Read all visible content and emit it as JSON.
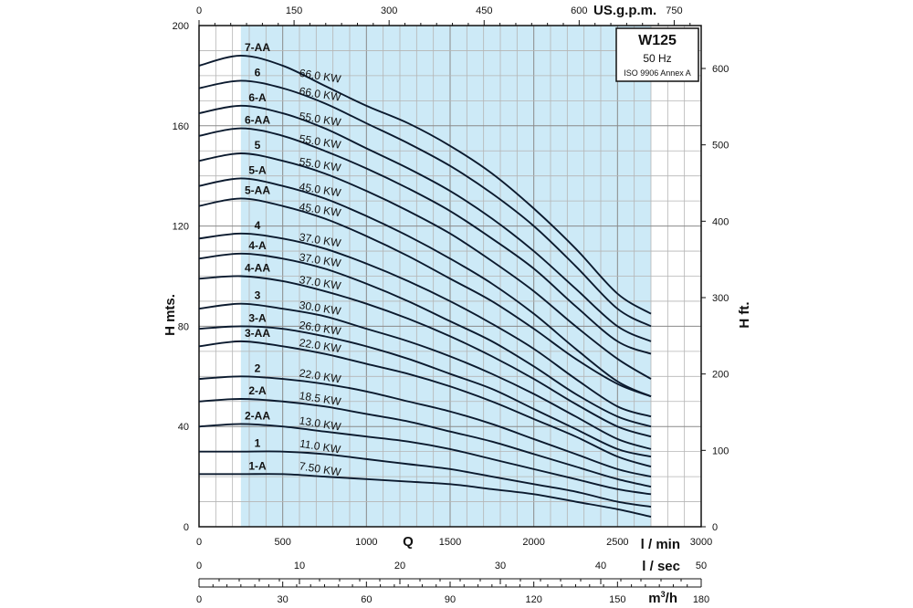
{
  "chart_data": {
    "type": "line",
    "title_box": {
      "model": "W125",
      "frequency": "50 Hz",
      "standard": "ISO 9906 Annex A"
    },
    "x_axis": {
      "label": "Q",
      "unit_label": "l / min",
      "range": [
        0,
        3000
      ],
      "ticks": [
        0,
        500,
        1000,
        1500,
        2000,
        2500,
        3000
      ]
    },
    "y_axis": {
      "label": "H mts.",
      "range": [
        0,
        200
      ],
      "ticks": [
        0,
        40,
        80,
        120,
        160,
        200
      ]
    },
    "y_axis_right": {
      "label": "H ft.",
      "ticks": [
        0,
        100,
        200,
        300,
        400,
        500,
        600
      ]
    },
    "x_axis_top": {
      "label": "US.g.p.m.",
      "ticks": [
        0,
        150,
        300,
        450,
        600,
        750
      ]
    },
    "x_axis_lsec": {
      "label": "l / sec",
      "ticks": [
        0,
        10,
        20,
        30,
        40,
        50
      ]
    },
    "x_axis_m3h": {
      "label": "m3/h",
      "ticks": [
        0,
        30,
        60,
        90,
        120,
        150,
        180
      ]
    },
    "operating_range": [
      250,
      2700
    ],
    "grid": true,
    "series": [
      {
        "name": "7-AA",
        "power": "66.0 KW",
        "x": [
          0,
          250,
          500,
          750,
          1000,
          1250,
          1500,
          1750,
          2000,
          2250,
          2500,
          2700
        ],
        "y": [
          184,
          188,
          184,
          176,
          168,
          161,
          152,
          141,
          127,
          111,
          93,
          85
        ]
      },
      {
        "name": "6",
        "power": "66.0 KW",
        "x": [
          0,
          250,
          500,
          750,
          1000,
          1250,
          1500,
          1750,
          2000,
          2250,
          2500,
          2700
        ],
        "y": [
          175,
          178,
          175,
          169,
          161,
          153,
          144,
          133,
          120,
          104,
          87,
          80
        ]
      },
      {
        "name": "6-A",
        "power": "55.0 KW",
        "x": [
          0,
          250,
          500,
          750,
          1000,
          1250,
          1500,
          1750,
          2000,
          2250,
          2500,
          2700
        ],
        "y": [
          165,
          168,
          165,
          159,
          151,
          143,
          134,
          123,
          110,
          95,
          80,
          74
        ]
      },
      {
        "name": "6-AA",
        "power": "55.0 KW",
        "x": [
          0,
          250,
          500,
          750,
          1000,
          1250,
          1500,
          1750,
          2000,
          2250,
          2500,
          2700
        ],
        "y": [
          156,
          159,
          156,
          150,
          143,
          135,
          126,
          115,
          103,
          88,
          74,
          69
        ]
      },
      {
        "name": "5",
        "power": "55.0 KW",
        "x": [
          0,
          250,
          500,
          750,
          1000,
          1250,
          1500,
          1750,
          2000,
          2250,
          2500,
          2700
        ],
        "y": [
          146,
          149,
          146,
          141,
          134,
          126,
          117,
          106,
          94,
          80,
          67,
          59
        ]
      },
      {
        "name": "5-A",
        "power": "45.0 KW",
        "x": [
          0,
          250,
          500,
          750,
          1000,
          1250,
          1500,
          1750,
          2000,
          2250,
          2500,
          2700
        ],
        "y": [
          136,
          139,
          136,
          131,
          124,
          116,
          107,
          97,
          85,
          71,
          58,
          52
        ]
      },
      {
        "name": "5-AA",
        "power": "45.0 KW",
        "x": [
          0,
          250,
          500,
          750,
          1000,
          1250,
          1500,
          1750,
          2000,
          2250,
          2500,
          2700
        ],
        "y": [
          128,
          131,
          128,
          123,
          116,
          108,
          99,
          90,
          79,
          67,
          57,
          52
        ]
      },
      {
        "name": "4",
        "power": "37.0 KW",
        "x": [
          0,
          250,
          500,
          750,
          1000,
          1250,
          1500,
          1750,
          2000,
          2250,
          2500,
          2700
        ],
        "y": [
          115,
          117,
          115,
          111,
          105,
          98,
          90,
          81,
          71,
          59,
          48,
          44
        ]
      },
      {
        "name": "4-A",
        "power": "37.0 KW",
        "x": [
          0,
          250,
          500,
          750,
          1000,
          1250,
          1500,
          1750,
          2000,
          2250,
          2500,
          2700
        ],
        "y": [
          107,
          109,
          107,
          103,
          97,
          90,
          82,
          74,
          64,
          53,
          44,
          40
        ]
      },
      {
        "name": "4-AA",
        "power": "37.0 KW",
        "x": [
          0,
          250,
          500,
          750,
          1000,
          1250,
          1500,
          1750,
          2000,
          2250,
          2500,
          2700
        ],
        "y": [
          99,
          100,
          98,
          94,
          89,
          83,
          76,
          68,
          59,
          49,
          40,
          36
        ]
      },
      {
        "name": "3",
        "power": "30.0 KW",
        "x": [
          0,
          250,
          500,
          750,
          1000,
          1250,
          1500,
          1750,
          2000,
          2250,
          2500,
          2700
        ],
        "y": [
          87,
          89,
          87,
          84,
          79,
          74,
          68,
          61,
          53,
          44,
          35,
          31
        ]
      },
      {
        "name": "3-A",
        "power": "26.0 KW",
        "x": [
          0,
          250,
          500,
          750,
          1000,
          1250,
          1500,
          1750,
          2000,
          2250,
          2500,
          2700
        ],
        "y": [
          79,
          80,
          79,
          76,
          72,
          67,
          61,
          55,
          47,
          39,
          31,
          28
        ]
      },
      {
        "name": "3-AA",
        "power": "22.0 KW",
        "x": [
          0,
          250,
          500,
          750,
          1000,
          1250,
          1500,
          1750,
          2000,
          2250,
          2500,
          2700
        ],
        "y": [
          72,
          74,
          72,
          69,
          65,
          61,
          56,
          50,
          43,
          36,
          28,
          24
        ]
      },
      {
        "name": "2",
        "power": "22.0 KW",
        "x": [
          0,
          250,
          500,
          750,
          1000,
          1250,
          1500,
          1750,
          2000,
          2250,
          2500,
          2700
        ],
        "y": [
          59,
          60,
          59,
          57,
          54,
          50,
          46,
          41,
          35,
          29,
          23,
          20
        ]
      },
      {
        "name": "2-A",
        "power": "18.5 KW",
        "x": [
          0,
          250,
          500,
          750,
          1000,
          1250,
          1500,
          1750,
          2000,
          2250,
          2500,
          2700
        ],
        "y": [
          50,
          51,
          50,
          48,
          45,
          42,
          38,
          34,
          29,
          24,
          19,
          16
        ]
      },
      {
        "name": "2-AA",
        "power": "13.0 KW",
        "x": [
          0,
          250,
          500,
          750,
          1000,
          1250,
          1500,
          1750,
          2000,
          2250,
          2500,
          2700
        ],
        "y": [
          40,
          41,
          40,
          38,
          36,
          34,
          31,
          27,
          23,
          19,
          15,
          13
        ]
      },
      {
        "name": "1",
        "power": "11.0 KW",
        "x": [
          0,
          250,
          500,
          750,
          1000,
          1250,
          1500,
          1750,
          2000,
          2250,
          2500,
          2700
        ],
        "y": [
          30,
          30,
          30,
          29,
          27,
          25,
          23,
          20,
          17,
          14,
          10,
          8
        ]
      },
      {
        "name": "1-A",
        "power": "7.50 KW",
        "x": [
          0,
          250,
          500,
          750,
          1000,
          1250,
          1500,
          1750,
          2000,
          2250,
          2500,
          2700
        ],
        "y": [
          21,
          21,
          21,
          20,
          19,
          18,
          17,
          15,
          13,
          10,
          7,
          4
        ]
      }
    ]
  }
}
